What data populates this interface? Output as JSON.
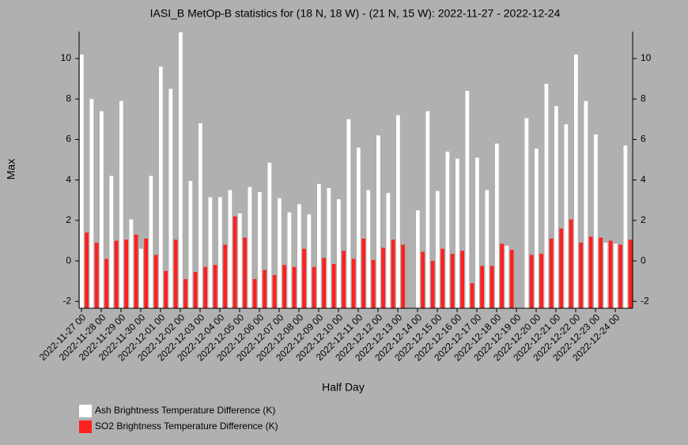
{
  "chart_data": {
    "type": "bar",
    "title": "IASI_B MetOp-B statistics for (18 N, 18 W) - (21 N, 15 W): 2022-11-27 - 2022-12-24",
    "x_label": "Half Day",
    "y_label": "Max",
    "categories": [
      "2022-11-27 00",
      null,
      "2022-11-28 00",
      null,
      "2022-11-29 00",
      null,
      "2022-11-30 00",
      null,
      "2022-12-01 00",
      null,
      "2022-12-02 00",
      null,
      "2022-12-03 00",
      null,
      "2022-12-04 00",
      null,
      "2022-12-05 00",
      null,
      "2022-12-06 00",
      null,
      "2022-12-07 00",
      null,
      "2022-12-08 00",
      null,
      "2022-12-09 00",
      null,
      "2022-12-10 00",
      null,
      "2022-12-11 00",
      null,
      "2022-12-12 00",
      null,
      "2022-12-13 00",
      null,
      "2022-12-14 00",
      null,
      "2022-12-15 00",
      null,
      "2022-12-16 00",
      null,
      "2022-12-17 00",
      null,
      "2022-12-18 00",
      null,
      "2022-12-19 00",
      null,
      "2022-12-20 00",
      null,
      "2022-12-21 00",
      null,
      "2022-12-22 00",
      null,
      "2022-12-23 00",
      null,
      "2022-12-24 00",
      null
    ],
    "series": [
      {
        "name": "Ash Brightness Temperature Difference (K)",
        "color": "#ffffff",
        "values": [
          10.2,
          8.0,
          7.4,
          4.2,
          7.9,
          2.05,
          0.6,
          4.2,
          9.6,
          8.5,
          11.3,
          3.95,
          6.8,
          3.15,
          3.15,
          3.5,
          2.35,
          3.65,
          3.4,
          4.85,
          3.1,
          2.4,
          2.8,
          2.3,
          3.8,
          3.6,
          3.05,
          7.0,
          5.6,
          3.5,
          6.2,
          3.35,
          7.2,
          null,
          2.5,
          7.4,
          3.45,
          5.4,
          5.05,
          8.4,
          5.1,
          3.5,
          5.8,
          0.75,
          null,
          7.05,
          5.55,
          8.75,
          7.65,
          6.75,
          10.2,
          7.9,
          6.25,
          0.9,
          0.85,
          5.7
        ]
      },
      {
        "name": "SO2 Brightness Temperature Difference (K)",
        "color": "#ff2020",
        "values": [
          1.4,
          0.9,
          0.1,
          1.0,
          1.05,
          1.3,
          1.1,
          0.3,
          -0.5,
          1.05,
          -0.9,
          -0.55,
          -0.3,
          -0.2,
          0.8,
          2.2,
          1.15,
          -0.9,
          -0.45,
          -0.7,
          -0.2,
          -0.3,
          0.6,
          -0.3,
          0.15,
          -0.15,
          0.5,
          0.1,
          1.1,
          0.05,
          0.65,
          1.05,
          0.8,
          null,
          0.45,
          0.0,
          0.6,
          0.35,
          0.5,
          -1.1,
          -0.25,
          -0.25,
          0.85,
          0.55,
          null,
          0.3,
          0.35,
          1.1,
          1.6,
          2.05,
          0.9,
          1.2,
          1.15,
          1.0,
          0.8,
          1.05
        ]
      }
    ],
    "ylim": [
      -2.34,
      11.33
    ],
    "yticks": [
      -2,
      0,
      2,
      4,
      6,
      8,
      10
    ]
  }
}
